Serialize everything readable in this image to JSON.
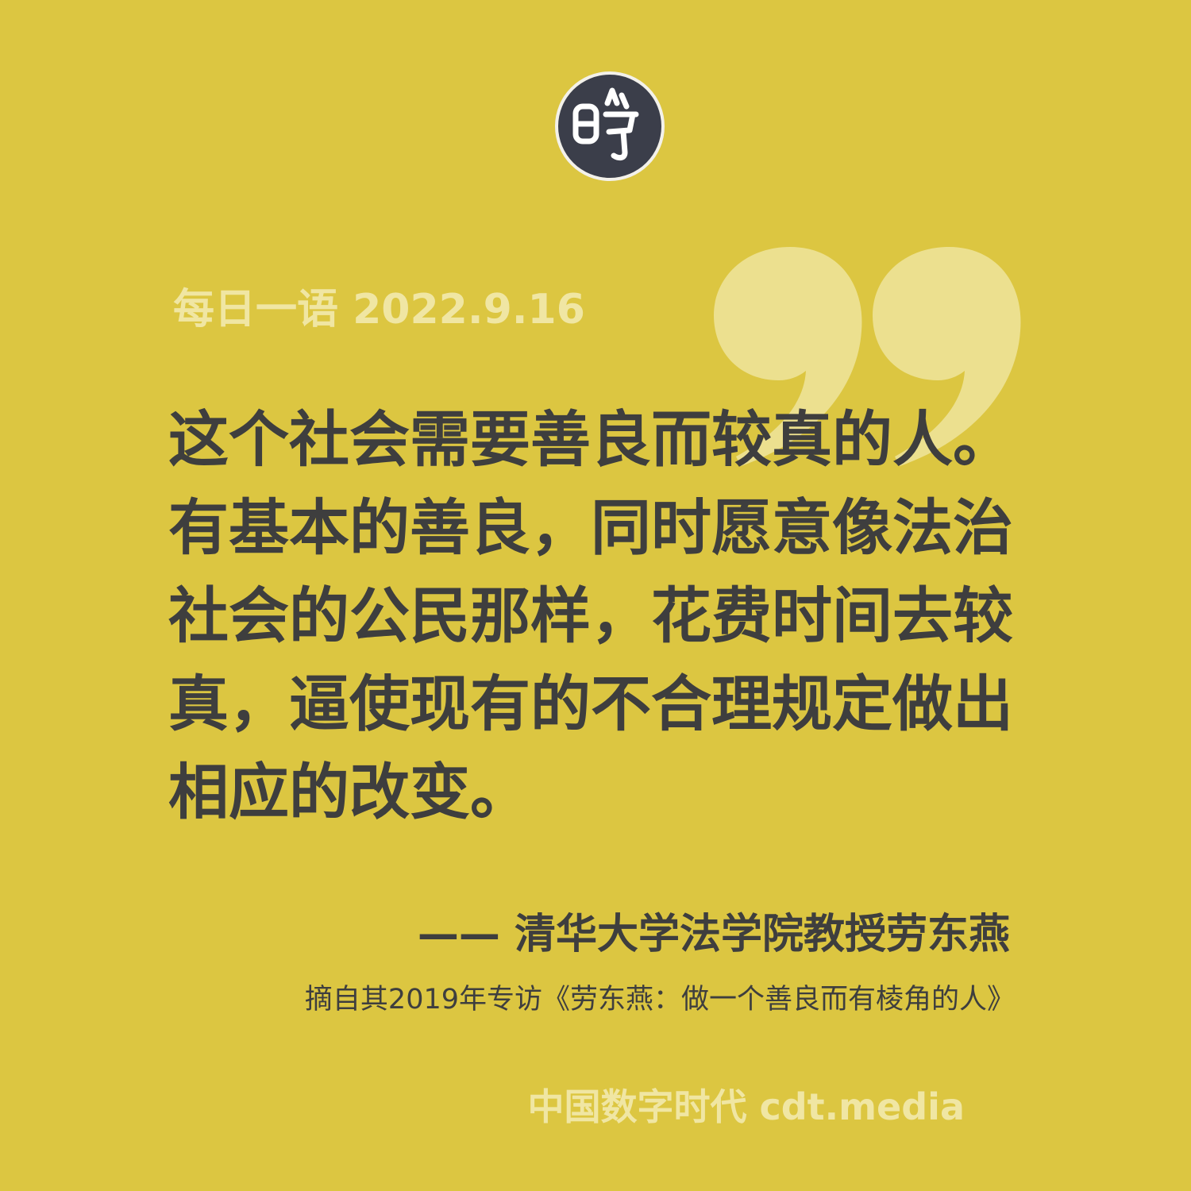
{
  "header": {
    "date_line": "每日一语 2022.9.16"
  },
  "quote": {
    "lines": [
      "这个社会需要善良而较真的人。",
      "有基本的善良，同时愿意像法治",
      "社会的公民那样，花费时间去较",
      "真，逼使现有的不合理规定做出",
      "相应的改变。"
    ]
  },
  "attribution": {
    "author": "—— 清华大学法学院教授劳东燕",
    "source": "摘自其2019年专访《劳东燕：做一个善良而有棱角的人》"
  },
  "footer": {
    "brand": "中国数字时代 cdt.media"
  },
  "colors": {
    "background": "#dcc641",
    "quote_text": "#3e3e3e",
    "light_text": "#f0e6a3",
    "logo_fill": "#3b3e4a",
    "quote_mark": "#ece08f"
  },
  "icons": {
    "logo": "cdt-seal-logo-icon",
    "quote_mark": "closing-quote-icon"
  }
}
